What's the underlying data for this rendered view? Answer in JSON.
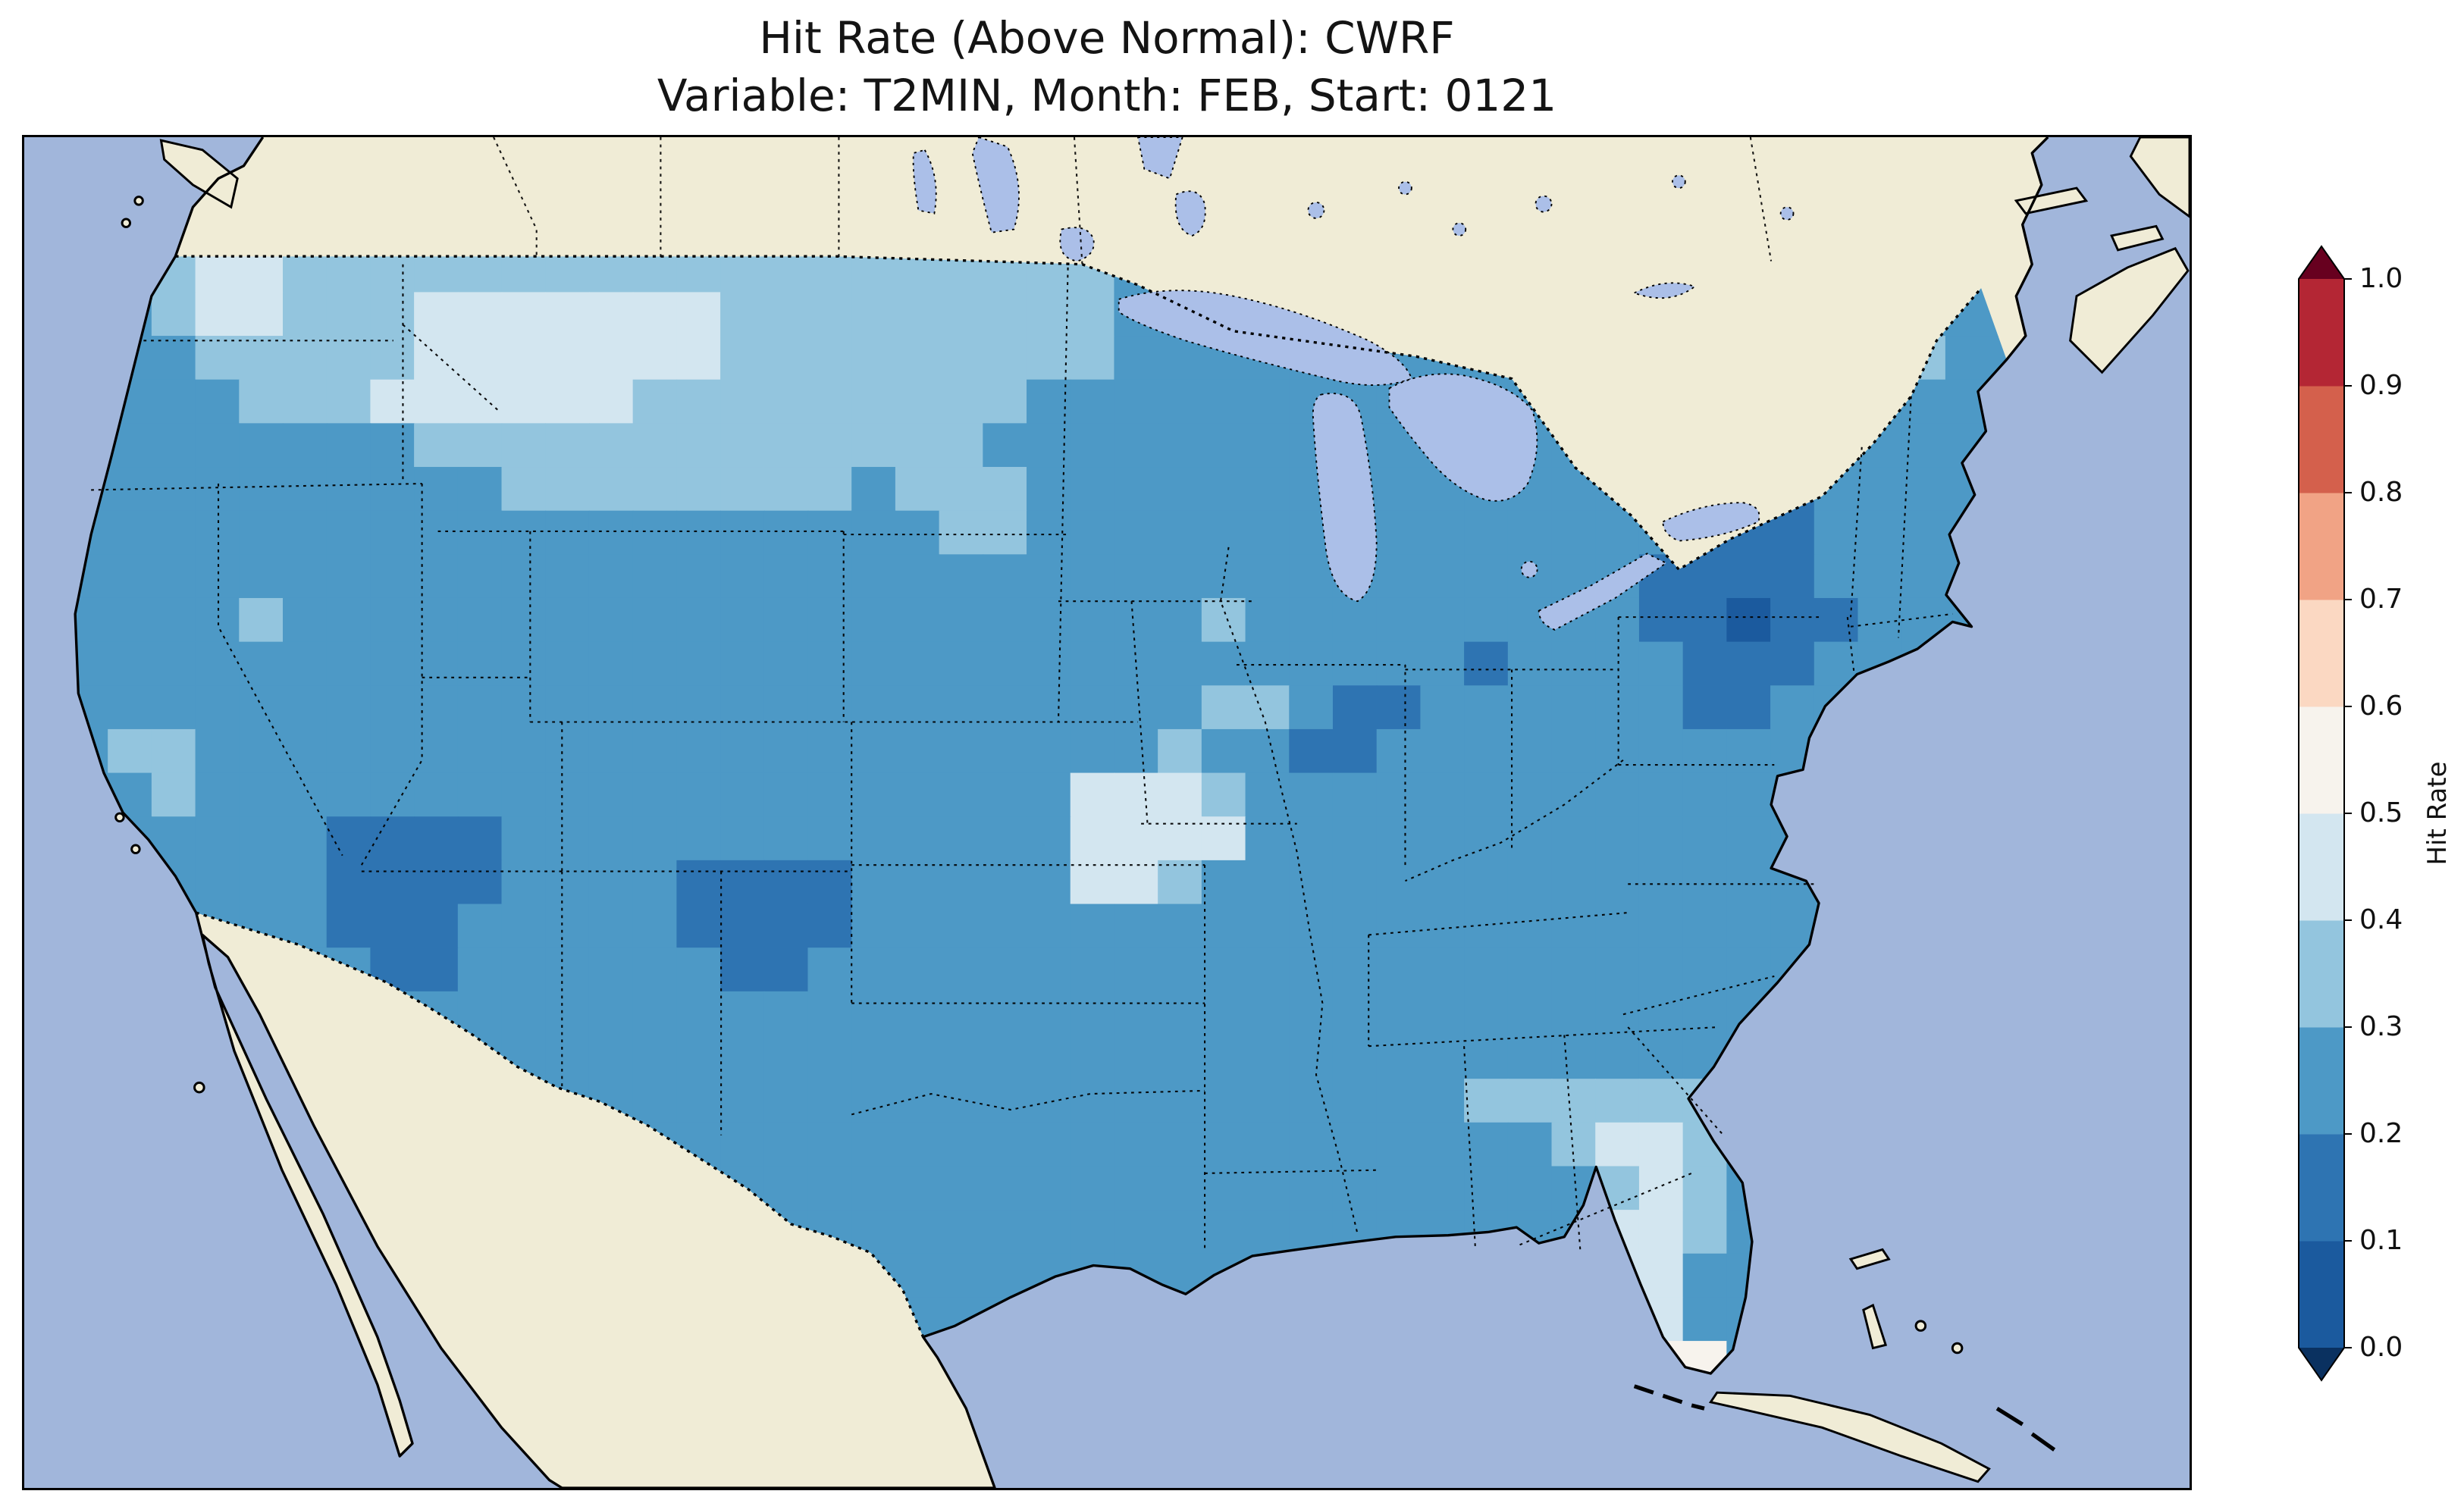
{
  "figure": {
    "title_line1": "Hit Rate (Above Normal): CWRF",
    "title_line2": "Variable: T2MIN, Month: FEB, Start: 0121"
  },
  "chart_data": {
    "type": "heatmap",
    "title": "Hit Rate (Above Normal): CWRF",
    "subtitle": "Variable: T2MIN, Month: FEB, Start: 0121",
    "metric": "Hit Rate (Above Normal)",
    "model": "CWRF",
    "variable": "T2MIN",
    "month": "FEB",
    "start": "0121",
    "legend_position": "right",
    "colorbar": {
      "label": "Hit Rate",
      "range": [
        0.0,
        1.0
      ],
      "bin_width": 0.1,
      "extend": "both",
      "ticks_top_to_bottom": [
        "1.0",
        "0.9",
        "0.8",
        "0.7",
        "0.6",
        "0.5",
        "0.4",
        "0.3",
        "0.2",
        "0.1",
        "0.0"
      ],
      "colors_low_to_high": [
        "#1b5a9e",
        "#2e74b2",
        "#4d99c6",
        "#93c5de",
        "#d3e6f0",
        "#f7f3ed",
        "#fbd8c2",
        "#f1a385",
        "#d4604c",
        "#b42634"
      ],
      "under_color": "#0a3160",
      "over_color": "#67001f"
    },
    "map_colors": {
      "ocean": "#a1b6db",
      "lake": "#abbfe8",
      "land_outside_domain": "#f0ecd6",
      "coastline": "#000000"
    },
    "value_bins_legend": {
      "0": "0.0-0.1",
      "1": "0.1-0.2",
      "2": "0.2-0.3",
      "3": "0.3-0.4",
      "4": "0.4-0.5",
      "5": "0.5-0.6"
    },
    "grid": {
      "palette": {
        "0": "#1b5a9e",
        "1": "#2e74b2",
        "2": "#4d99c6",
        "3": "#93c5de",
        "4": "#d3e6f0",
        "5": "#f7f3ed"
      },
      "no_data_char": ".",
      "origin": [
        25,
        70
      ],
      "cell_size": 27.5,
      "rows": [
        "223443333333333333333333222222222222222222222",
        "223443334444444333333333222222222222222222222",
        "222333334444444333333333222222222222222233322",
        "222233344444433333333322222222222222222222222",
        "222222223333333333333222222222222222222222222",
        "222222222233333333233322222222222222221122222",
        "222222222222222222223322222222222222211122222",
        "222222222222222222222222222222222222111122222",
        "222232222222222222222222223222222222110112222",
        "222222222222222222222222222222221222211122222",
        "222222222222222222222222223321122222211222222",
        "233222222222222222222222232211222222222222222",
        "223222222222222222222224443222222222222222222",
        "222222111122222222222224444222222222222222222",
        "222222111122221111222224432222222222222222222",
        "222222111222221111222222222222222222222222222",
        "222222211222222112222222222222222222222222222",
        "222222222222222222222222222222222222222222222",
        "222222222222222222222222222222222222222222222",
        "222222222222222222222222222222223333332222222",
        "222222222222222222222222222222222234432222222",
        "222222222222222222222222222222222223432222222",
        "222222222222222222222222222222222224432222222",
        "222222222222222222222222222222222224422222222",
        "222222222222222222222222222222222223422222222",
        "222222222222222222222222222222222225552222222"
      ]
    }
  }
}
